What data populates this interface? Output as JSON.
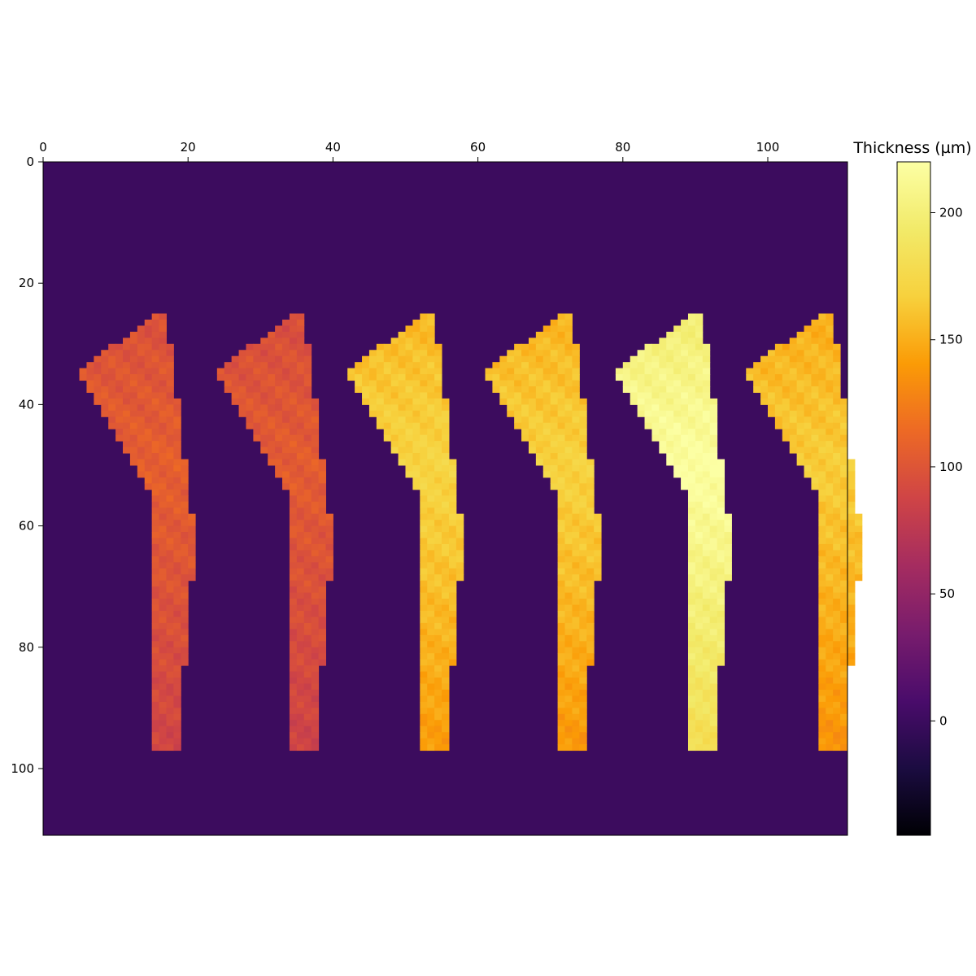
{
  "chart_data": {
    "type": "heatmap",
    "title": "",
    "xlabel": "",
    "ylabel": "",
    "xlim": [
      0,
      111
    ],
    "ylim": [
      111,
      0
    ],
    "x_axis_position": "top",
    "xticks": [
      0,
      20,
      40,
      60,
      80,
      100
    ],
    "yticks": [
      0,
      20,
      40,
      60,
      80,
      100
    ],
    "xtick_labels": [
      "0",
      "20",
      "40",
      "60",
      "80",
      "100"
    ],
    "ytick_labels": [
      "0",
      "20",
      "40",
      "60",
      "80",
      "100"
    ],
    "background_value": 0,
    "colormap": "inferno",
    "colorbar": {
      "label": "Thickness (µm)",
      "range": [
        -45,
        220
      ],
      "ticks": [
        0,
        50,
        100,
        150,
        200
      ],
      "tick_labels": [
        "0",
        "50",
        "100",
        "150",
        "200"
      ],
      "placement": "right"
    },
    "series": [
      {
        "x_start": 5,
        "mean_thickness": 100
      },
      {
        "x_start": 24,
        "mean_thickness": 98
      },
      {
        "x_start": 42,
        "mean_thickness": 160
      },
      {
        "x_start": 61,
        "mean_thickness": 158
      },
      {
        "x_start": 79,
        "mean_thickness": 205
      },
      {
        "x_start": 97,
        "mean_thickness": 155
      }
    ]
  }
}
